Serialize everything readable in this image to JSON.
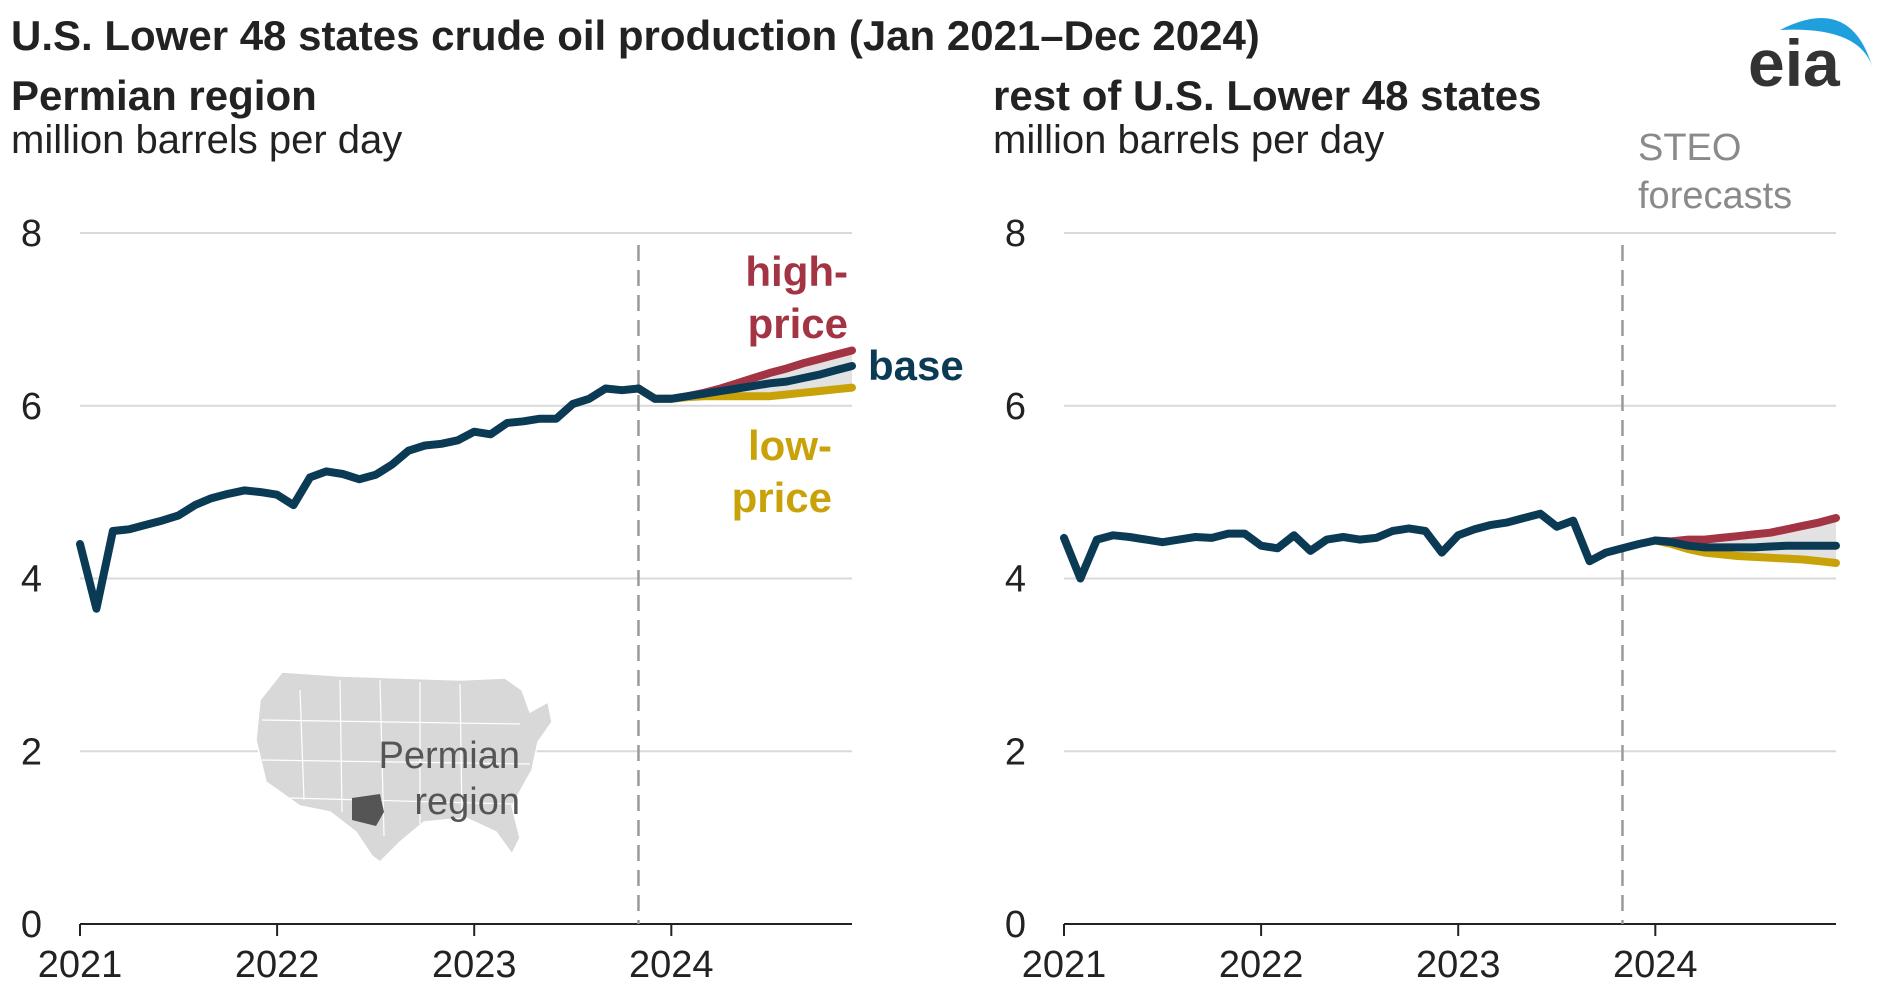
{
  "title": "U.S. Lower 48 states crude oil production (Jan 2021–Dec 2024)",
  "logo_text": "eia",
  "colors": {
    "base": "#0b3a55",
    "high": "#a33444",
    "low": "#c9a20a",
    "band": "#e2e2e2",
    "grid": "#d9d9d9",
    "forecast_line": "#9a9a9a",
    "map_fill": "#d8d8d8",
    "permian_fill": "#555555",
    "logo_arc": "#1fa0dc",
    "logo_text": "#333333"
  },
  "map_label": [
    "Permian",
    "region"
  ],
  "forecast_note": [
    "STEO",
    "forecasts"
  ],
  "chart_data": [
    {
      "type": "line",
      "subtitle": "Permian region",
      "ylabel": "million barrels per day",
      "ylim": [
        0,
        8
      ],
      "yticks": [
        0,
        2,
        4,
        6,
        8
      ],
      "xlim": [
        "2021-01",
        "2024-12"
      ],
      "xticks": [
        "2021",
        "2022",
        "2023",
        "2024"
      ],
      "grid": true,
      "forecast_start": "2023-11",
      "history": {
        "name": "base",
        "x": [
          "2021-01",
          "2021-02",
          "2021-03",
          "2021-04",
          "2021-05",
          "2021-06",
          "2021-07",
          "2021-08",
          "2021-09",
          "2021-10",
          "2021-11",
          "2021-12",
          "2022-01",
          "2022-02",
          "2022-03",
          "2022-04",
          "2022-05",
          "2022-06",
          "2022-07",
          "2022-08",
          "2022-09",
          "2022-10",
          "2022-11",
          "2022-12",
          "2023-01",
          "2023-02",
          "2023-03",
          "2023-04",
          "2023-05",
          "2023-06",
          "2023-07",
          "2023-08",
          "2023-09",
          "2023-10",
          "2023-11"
        ],
        "values": [
          4.4,
          3.65,
          4.55,
          4.57,
          4.62,
          4.67,
          4.73,
          4.85,
          4.93,
          4.98,
          5.02,
          5.0,
          4.97,
          4.85,
          5.17,
          5.24,
          5.21,
          5.15,
          5.2,
          5.32,
          5.48,
          5.54,
          5.56,
          5.6,
          5.7,
          5.67,
          5.8,
          5.82,
          5.85,
          5.85,
          6.02,
          6.08,
          6.2,
          6.18,
          6.2
        ]
      },
      "series": [
        {
          "name": "high-price",
          "label": [
            "high-",
            "price"
          ],
          "x": [
            "2023-11",
            "2023-12",
            "2024-01",
            "2024-02",
            "2024-03",
            "2024-04",
            "2024-05",
            "2024-06",
            "2024-07",
            "2024-08",
            "2024-09",
            "2024-10",
            "2024-11",
            "2024-12"
          ],
          "values": [
            6.2,
            6.08,
            6.08,
            6.11,
            6.15,
            6.2,
            6.26,
            6.32,
            6.38,
            6.43,
            6.49,
            6.54,
            6.59,
            6.64
          ]
        },
        {
          "name": "base",
          "label": [
            "base"
          ],
          "x": [
            "2023-11",
            "2023-12",
            "2024-01",
            "2024-02",
            "2024-03",
            "2024-04",
            "2024-05",
            "2024-06",
            "2024-07",
            "2024-08",
            "2024-09",
            "2024-10",
            "2024-11",
            "2024-12"
          ],
          "values": [
            6.2,
            6.08,
            6.08,
            6.11,
            6.14,
            6.17,
            6.2,
            6.23,
            6.26,
            6.28,
            6.32,
            6.36,
            6.41,
            6.46
          ]
        },
        {
          "name": "low-price",
          "label": [
            "low-",
            "price"
          ],
          "x": [
            "2023-11",
            "2023-12",
            "2024-01",
            "2024-02",
            "2024-03",
            "2024-04",
            "2024-05",
            "2024-06",
            "2024-07",
            "2024-08",
            "2024-09",
            "2024-10",
            "2024-11",
            "2024-12"
          ],
          "values": [
            6.2,
            6.08,
            6.08,
            6.1,
            6.11,
            6.11,
            6.11,
            6.11,
            6.11,
            6.13,
            6.15,
            6.17,
            6.19,
            6.21
          ]
        }
      ]
    },
    {
      "type": "line",
      "subtitle": "rest of U.S. Lower 48 states",
      "ylabel": "million barrels per day",
      "ylim": [
        0,
        8
      ],
      "yticks": [
        0,
        2,
        4,
        6,
        8
      ],
      "xlim": [
        "2021-01",
        "2024-12"
      ],
      "xticks": [
        "2021",
        "2022",
        "2023",
        "2024"
      ],
      "grid": true,
      "forecast_start": "2023-11",
      "history": {
        "name": "base",
        "x": [
          "2021-01",
          "2021-02",
          "2021-03",
          "2021-04",
          "2021-05",
          "2021-06",
          "2021-07",
          "2021-08",
          "2021-09",
          "2021-10",
          "2021-11",
          "2021-12",
          "2022-01",
          "2022-02",
          "2022-03",
          "2022-04",
          "2022-05",
          "2022-06",
          "2022-07",
          "2022-08",
          "2022-09",
          "2022-10",
          "2022-11",
          "2022-12",
          "2023-01",
          "2023-02",
          "2023-03",
          "2023-04",
          "2023-05",
          "2023-06",
          "2023-07",
          "2023-08",
          "2023-09",
          "2023-10",
          "2023-11",
          "2023-12",
          "2024-01"
        ],
        "values": [
          4.47,
          4.0,
          4.45,
          4.5,
          4.48,
          4.45,
          4.42,
          4.45,
          4.48,
          4.47,
          4.52,
          4.52,
          4.38,
          4.35,
          4.5,
          4.32,
          4.45,
          4.48,
          4.45,
          4.47,
          4.55,
          4.58,
          4.55,
          4.3,
          4.5,
          4.57,
          4.62,
          4.65,
          4.7,
          4.75,
          4.6,
          4.67,
          4.2,
          4.3,
          4.35,
          4.4,
          4.44
        ]
      },
      "series": [
        {
          "name": "high-price",
          "x": [
            "2024-01",
            "2024-02",
            "2024-03",
            "2024-04",
            "2024-05",
            "2024-06",
            "2024-07",
            "2024-08",
            "2024-09",
            "2024-10",
            "2024-11",
            "2024-12"
          ],
          "values": [
            4.44,
            4.43,
            4.45,
            4.45,
            4.47,
            4.49,
            4.51,
            4.53,
            4.57,
            4.61,
            4.65,
            4.7
          ]
        },
        {
          "name": "base",
          "x": [
            "2024-01",
            "2024-02",
            "2024-03",
            "2024-04",
            "2024-05",
            "2024-06",
            "2024-07",
            "2024-08",
            "2024-09",
            "2024-10",
            "2024-11",
            "2024-12"
          ],
          "values": [
            4.44,
            4.42,
            4.38,
            4.36,
            4.36,
            4.36,
            4.36,
            4.37,
            4.38,
            4.38,
            4.38,
            4.38
          ]
        },
        {
          "name": "low-price",
          "x": [
            "2024-01",
            "2024-02",
            "2024-03",
            "2024-04",
            "2024-05",
            "2024-06",
            "2024-07",
            "2024-08",
            "2024-09",
            "2024-10",
            "2024-11",
            "2024-12"
          ],
          "values": [
            4.44,
            4.4,
            4.34,
            4.3,
            4.28,
            4.26,
            4.25,
            4.24,
            4.23,
            4.22,
            4.2,
            4.18
          ]
        }
      ]
    }
  ]
}
